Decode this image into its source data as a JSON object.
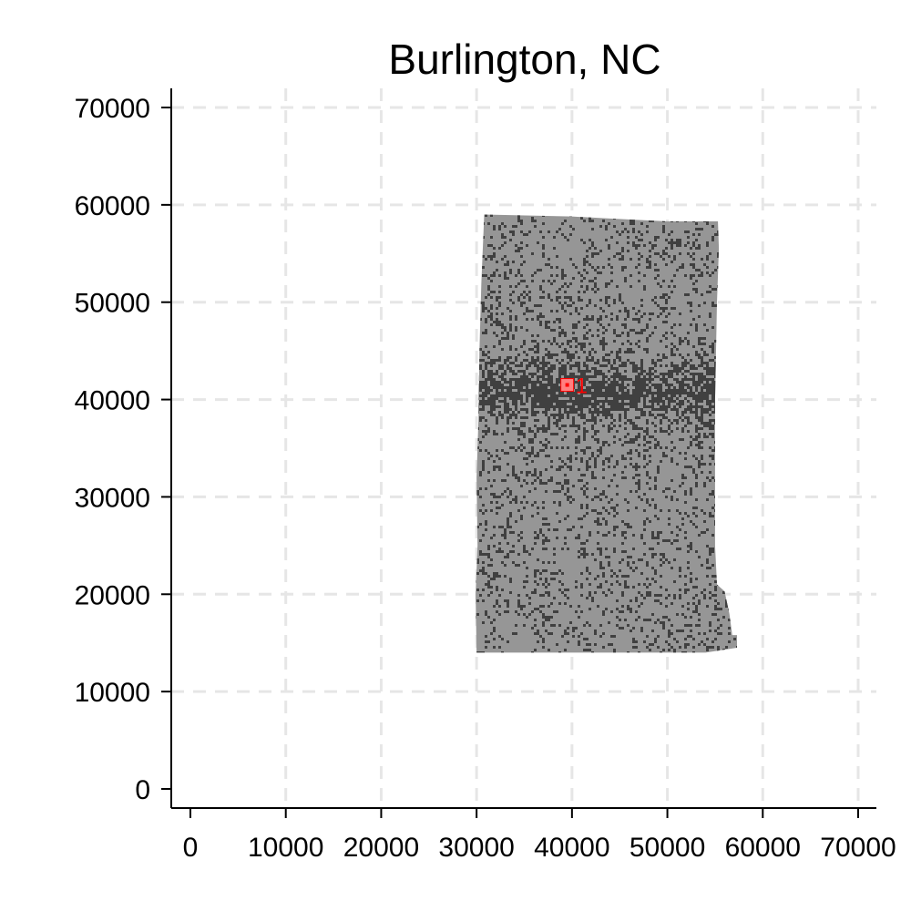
{
  "chart_data": {
    "type": "scatter",
    "title": "Burlington, NC",
    "xlabel": "",
    "ylabel": "",
    "xlim": [
      -2000,
      72000
    ],
    "ylim": [
      -2000,
      72000
    ],
    "x_ticks": [
      0,
      10000,
      20000,
      30000,
      40000,
      50000,
      60000,
      70000
    ],
    "y_ticks": [
      0,
      10000,
      20000,
      30000,
      40000,
      50000,
      60000,
      70000
    ],
    "x_tick_labels": [
      "0",
      "10000",
      "20000",
      "30000",
      "40000",
      "50000",
      "60000",
      "70000"
    ],
    "y_tick_labels": [
      "0",
      "10000",
      "20000",
      "30000",
      "40000",
      "50000",
      "60000",
      "70000"
    ],
    "grid": true,
    "region_outline": [
      [
        30800,
        59000
      ],
      [
        40000,
        58800
      ],
      [
        44000,
        58600
      ],
      [
        50000,
        58300
      ],
      [
        55300,
        58300
      ],
      [
        55400,
        55500
      ],
      [
        55200,
        50000
      ],
      [
        55100,
        45000
      ],
      [
        55000,
        40000
      ],
      [
        55000,
        35000
      ],
      [
        55000,
        25000
      ],
      [
        55200,
        21000
      ],
      [
        56000,
        20300
      ],
      [
        56500,
        18000
      ],
      [
        56800,
        15800
      ],
      [
        57300,
        15800
      ],
      [
        57300,
        14500
      ],
      [
        54000,
        14000
      ],
      [
        30000,
        14000
      ],
      [
        29900,
        20000
      ],
      [
        30100,
        25000
      ],
      [
        30000,
        32000
      ],
      [
        30200,
        38000
      ],
      [
        30300,
        45000
      ],
      [
        30500,
        52000
      ],
      [
        30800,
        59000
      ]
    ],
    "region_fill": "#969696",
    "dense_color": "#404040",
    "highlight_color": "#ff0000",
    "highlight_fill": "#ff8080",
    "markers": [
      {
        "label": "1",
        "x": 39500,
        "y": 41500
      }
    ]
  }
}
